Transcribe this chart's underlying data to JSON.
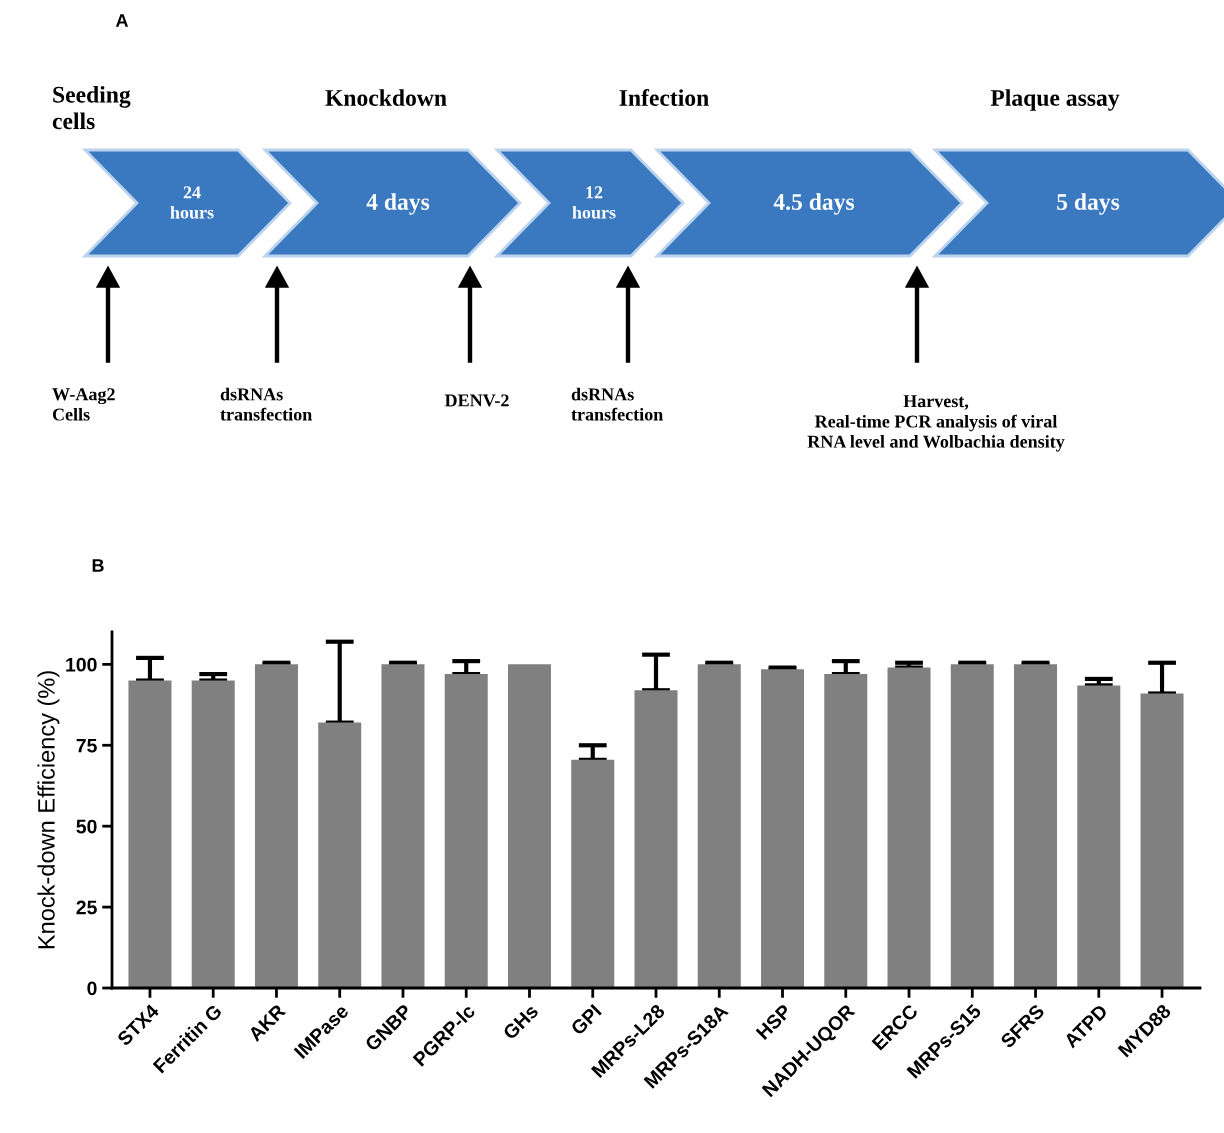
{
  "chart_data": [
    {
      "type": "other",
      "title": "A",
      "annotations": [
        "Seeding\ncells",
        "Knockdown",
        "Infection",
        "Plaque assay",
        "24\nhours",
        "4 days",
        "12\nhours",
        "4.5 days",
        "5 days",
        "W-Aag2\nCells",
        "dsRNAs\ntransfection",
        "DENV-2",
        "dsRNAs\ntransfection",
        "Harvest,\nReal-time PCR analysis of viral\nRNA level and Wolbachia density"
      ]
    },
    {
      "type": "bar",
      "title": "B",
      "ylabel": "Knock-down Efficiency (%)",
      "categories": [
        "STX4",
        "Ferritin G",
        "AKR",
        "IMPase",
        "GNBP",
        "PGRP-lc",
        "GHs",
        "GPI",
        "MRPs-L28",
        "MRPs-S18A",
        "HSP",
        "NADH-UQOR",
        "ERCC",
        "MRPs-S15",
        "SFRS",
        "ATPD",
        "MYD88"
      ],
      "values": [
        95,
        95,
        100,
        82,
        100,
        97,
        100,
        70.5,
        92,
        100,
        98.5,
        97,
        99,
        100,
        100,
        93.5,
        91
      ],
      "errors": [
        [
          95,
          102
        ],
        [
          95,
          97
        ],
        [
          100,
          100.5
        ],
        [
          82,
          107
        ],
        [
          100,
          100.5
        ],
        [
          97,
          101
        ],
        null,
        [
          70.5,
          75
        ],
        [
          92,
          103
        ],
        [
          100,
          100.5
        ],
        [
          98.5,
          99
        ],
        [
          97,
          101
        ],
        [
          99,
          100.5
        ],
        [
          100,
          100.5
        ],
        [
          100,
          100.5
        ],
        [
          93.5,
          95.5
        ],
        [
          91,
          100.5
        ]
      ],
      "color": "#808080",
      "ylim": [
        0,
        110
      ],
      "yticks": [
        0,
        25,
        50,
        75,
        100
      ],
      "grid": false
    }
  ]
}
